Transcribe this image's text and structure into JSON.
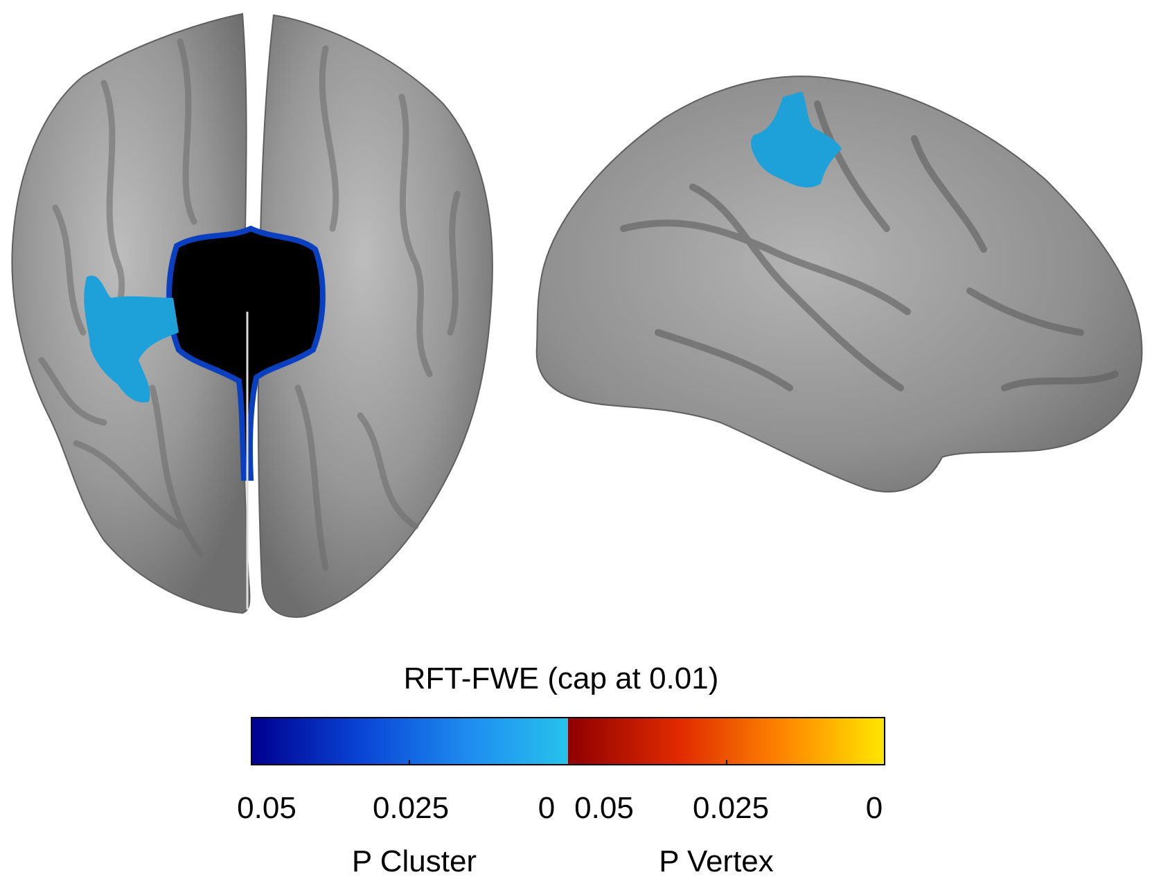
{
  "colorbar": {
    "title": "RFT-FWE (cap at 0.01)",
    "cluster": {
      "label": "P Cluster",
      "ticks": [
        "0.05",
        "0.025",
        "0"
      ],
      "gradient": [
        "#00008f",
        "#0a45d6",
        "#1f8ff0",
        "#27c2ec"
      ]
    },
    "vertex": {
      "label": "P Vertex",
      "ticks": [
        "0.05",
        "0.025",
        "0"
      ],
      "gradient": [
        "#8f0000",
        "#e02a00",
        "#ff8c00",
        "#ffe600"
      ]
    }
  },
  "colors": {
    "cortex": "#8e8e8e",
    "cortex_light": "#b9b9b9",
    "sulcus": "#666666",
    "significant_cluster": "#1ea0d8",
    "medial_wall": "#000000"
  }
}
